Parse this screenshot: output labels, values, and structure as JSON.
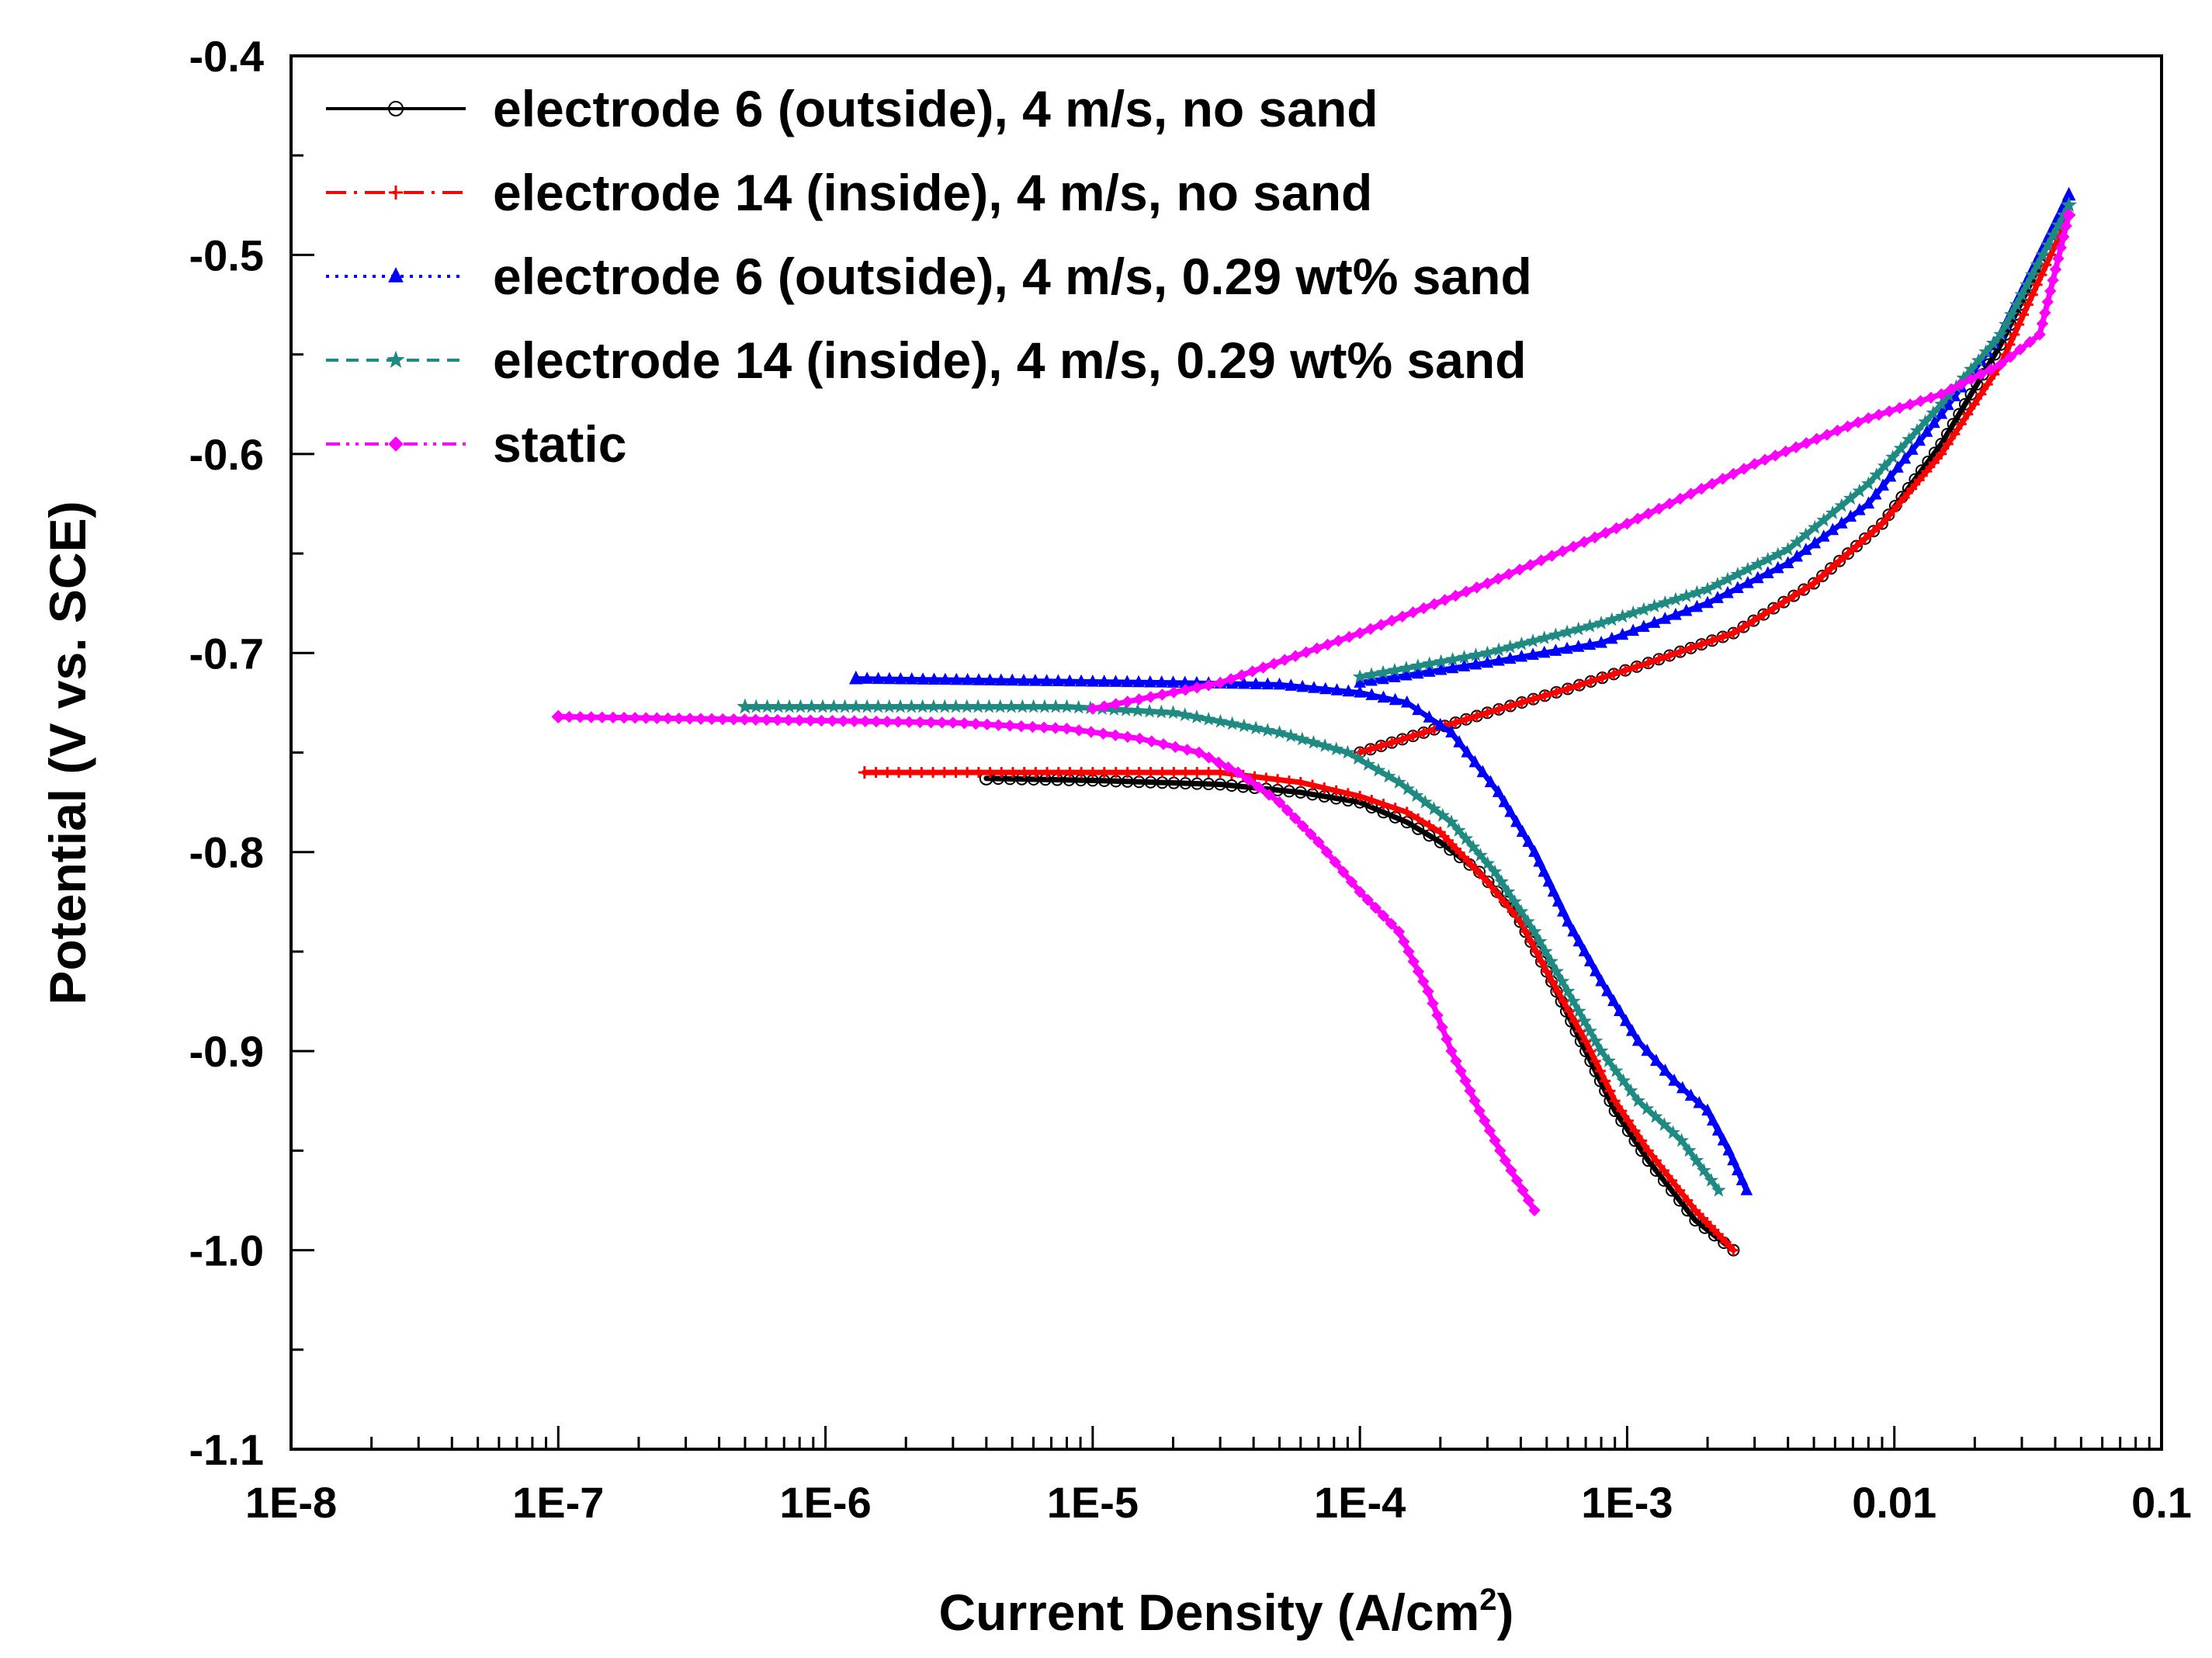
{
  "chart_data": {
    "type": "line",
    "title": "",
    "xlabel": "Current Density (A/cm",
    "xlabel_sup": "2",
    "xlabel_close": ")",
    "ylabel": "Potential (V vs. SCE)",
    "x_scale": "log",
    "xlim": [
      1e-08,
      0.1
    ],
    "ylim": [
      -1.1,
      -0.4
    ],
    "x_ticks": [
      {
        "value": 1e-08,
        "label": "1E-8"
      },
      {
        "value": 1e-07,
        "label": "1E-7"
      },
      {
        "value": 1e-06,
        "label": "1E-6"
      },
      {
        "value": 1e-05,
        "label": "1E-5"
      },
      {
        "value": 0.0001,
        "label": "1E-4"
      },
      {
        "value": 0.001,
        "label": "1E-3"
      },
      {
        "value": 0.01,
        "label": "0.01"
      },
      {
        "value": 0.1,
        "label": "0.1"
      }
    ],
    "y_ticks": [
      {
        "value": -0.4,
        "label": "-0.4"
      },
      {
        "value": -0.5,
        "label": "-0.5"
      },
      {
        "value": -0.6,
        "label": "-0.6"
      },
      {
        "value": -0.7,
        "label": "-0.7"
      },
      {
        "value": -0.8,
        "label": "-0.8"
      },
      {
        "value": -0.9,
        "label": "-0.9"
      },
      {
        "value": -1.0,
        "label": "-1.0"
      },
      {
        "value": -1.1,
        "label": "-1.1"
      }
    ],
    "grid": false,
    "legend_position": "top-left",
    "series": [
      {
        "name": "electrode 6 (outside), 4 m/s, no sand",
        "color": "#000000",
        "dash": "solid",
        "marker": "circle",
        "cathodic": [
          [
            0.0025,
            -1.0
          ],
          [
            0.0018,
            -0.985
          ],
          [
            0.0012,
            -0.955
          ],
          [
            0.0009,
            -0.93
          ],
          [
            0.0007,
            -0.9
          ],
          [
            0.0005,
            -0.86
          ],
          [
            0.00038,
            -0.83
          ],
          [
            0.00028,
            -0.81
          ],
          [
            0.0002,
            -0.795
          ],
          [
            0.00015,
            -0.785
          ],
          [
            0.0001,
            -0.775
          ],
          [
            6e-05,
            -0.77
          ],
          [
            3e-05,
            -0.766
          ],
          [
            1e-05,
            -0.764
          ],
          [
            4e-06,
            -0.763
          ]
        ],
        "anodic": [
          [
            0.0001,
            -0.75
          ],
          [
            0.0003,
            -0.73
          ],
          [
            0.0006,
            -0.718
          ],
          [
            0.0012,
            -0.705
          ],
          [
            0.0025,
            -0.69
          ],
          [
            0.005,
            -0.665
          ],
          [
            0.009,
            -0.635
          ],
          [
            0.015,
            -0.595
          ],
          [
            0.025,
            -0.545
          ],
          [
            0.035,
            -0.505
          ]
        ]
      },
      {
        "name": "electrode 14 (inside), 4 m/s, no sand",
        "color": "#ff0000",
        "dash": "dashdot",
        "marker": "plus",
        "cathodic": [
          [
            0.0025,
            -1.0
          ],
          [
            0.0018,
            -0.98
          ],
          [
            0.0012,
            -0.95
          ],
          [
            0.0009,
            -0.925
          ],
          [
            0.0007,
            -0.895
          ],
          [
            0.0005,
            -0.86
          ],
          [
            0.0004,
            -0.835
          ],
          [
            0.0003,
            -0.815
          ],
          [
            0.0002,
            -0.79
          ],
          [
            0.00015,
            -0.78
          ],
          [
            0.0001,
            -0.772
          ],
          [
            6e-05,
            -0.765
          ],
          [
            3e-05,
            -0.76
          ],
          [
            1e-05,
            -0.76
          ],
          [
            1.4e-06,
            -0.76
          ]
        ],
        "anodic": [
          [
            0.0001,
            -0.75
          ],
          [
            0.0003,
            -0.73
          ],
          [
            0.0006,
            -0.718
          ],
          [
            0.0012,
            -0.705
          ],
          [
            0.0025,
            -0.69
          ],
          [
            0.005,
            -0.665
          ],
          [
            0.009,
            -0.635
          ],
          [
            0.015,
            -0.6
          ],
          [
            0.025,
            -0.555
          ],
          [
            0.045,
            -0.48
          ]
        ]
      },
      {
        "name": "electrode 6 (outside), 4 m/s, 0.29 wt% sand",
        "color": "#0000ff",
        "dash": "dotted",
        "marker": "triangle",
        "cathodic": [
          [
            0.0028,
            -0.97
          ],
          [
            0.0024,
            -0.95
          ],
          [
            0.002,
            -0.93
          ],
          [
            0.0015,
            -0.915
          ],
          [
            0.0011,
            -0.895
          ],
          [
            0.0008,
            -0.865
          ],
          [
            0.0006,
            -0.835
          ],
          [
            0.00045,
            -0.8
          ],
          [
            0.00033,
            -0.77
          ],
          [
            0.00022,
            -0.74
          ],
          [
            0.00015,
            -0.725
          ],
          [
            0.0001,
            -0.72
          ],
          [
            5e-05,
            -0.716
          ],
          [
            2e-05,
            -0.715
          ],
          [
            5e-06,
            -0.714
          ],
          [
            1.3e-06,
            -0.713
          ]
        ],
        "anodic": [
          [
            0.0001,
            -0.715
          ],
          [
            0.0003,
            -0.705
          ],
          [
            0.0008,
            -0.695
          ],
          [
            0.002,
            -0.675
          ],
          [
            0.004,
            -0.655
          ],
          [
            0.008,
            -0.625
          ],
          [
            0.015,
            -0.58
          ],
          [
            0.025,
            -0.54
          ],
          [
            0.045,
            -0.47
          ]
        ]
      },
      {
        "name": "electrode 14 (inside), 4 m/s, 0.29 wt% sand",
        "color": "#1f8a82",
        "dash": "dashed",
        "marker": "star",
        "cathodic": [
          [
            0.0022,
            -0.97
          ],
          [
            0.0016,
            -0.945
          ],
          [
            0.0011,
            -0.925
          ],
          [
            0.0008,
            -0.9
          ],
          [
            0.0006,
            -0.87
          ],
          [
            0.00045,
            -0.84
          ],
          [
            0.00032,
            -0.81
          ],
          [
            0.00022,
            -0.785
          ],
          [
            0.00014,
            -0.765
          ],
          [
            9e-05,
            -0.75
          ],
          [
            5e-05,
            -0.74
          ],
          [
            2e-05,
            -0.73
          ],
          [
            8e-06,
            -0.727
          ],
          [
            5e-07,
            -0.727
          ]
        ],
        "anodic": [
          [
            0.0001,
            -0.712
          ],
          [
            0.0003,
            -0.7
          ],
          [
            0.0008,
            -0.685
          ],
          [
            0.002,
            -0.668
          ],
          [
            0.004,
            -0.648
          ],
          [
            0.008,
            -0.615
          ],
          [
            0.015,
            -0.575
          ],
          [
            0.025,
            -0.54
          ],
          [
            0.045,
            -0.475
          ]
        ]
      },
      {
        "name": "static",
        "color": "#ff00ff",
        "dash": "dashdotdot",
        "marker": "diamond",
        "cathodic": [
          [
            0.00045,
            -0.98
          ],
          [
            0.00035,
            -0.955
          ],
          [
            0.00028,
            -0.93
          ],
          [
            0.00022,
            -0.9
          ],
          [
            0.00018,
            -0.87
          ],
          [
            0.00014,
            -0.84
          ],
          [
            0.0001,
            -0.82
          ],
          [
            7e-05,
            -0.795
          ],
          [
            5e-05,
            -0.775
          ],
          [
            3.5e-05,
            -0.76
          ],
          [
            2.5e-05,
            -0.75
          ],
          [
            1.5e-05,
            -0.743
          ],
          [
            8e-06,
            -0.738
          ],
          [
            3e-06,
            -0.735
          ],
          [
            1e-07,
            -0.732
          ]
        ],
        "anodic": [
          [
            1e-05,
            -0.728
          ],
          [
            3e-05,
            -0.715
          ],
          [
            0.0001,
            -0.69
          ],
          [
            0.0003,
            -0.665
          ],
          [
            0.001,
            -0.635
          ],
          [
            0.003,
            -0.605
          ],
          [
            0.008,
            -0.582
          ],
          [
            0.015,
            -0.57
          ],
          [
            0.025,
            -0.555
          ],
          [
            0.035,
            -0.54
          ],
          [
            0.045,
            -0.48
          ]
        ]
      }
    ]
  }
}
